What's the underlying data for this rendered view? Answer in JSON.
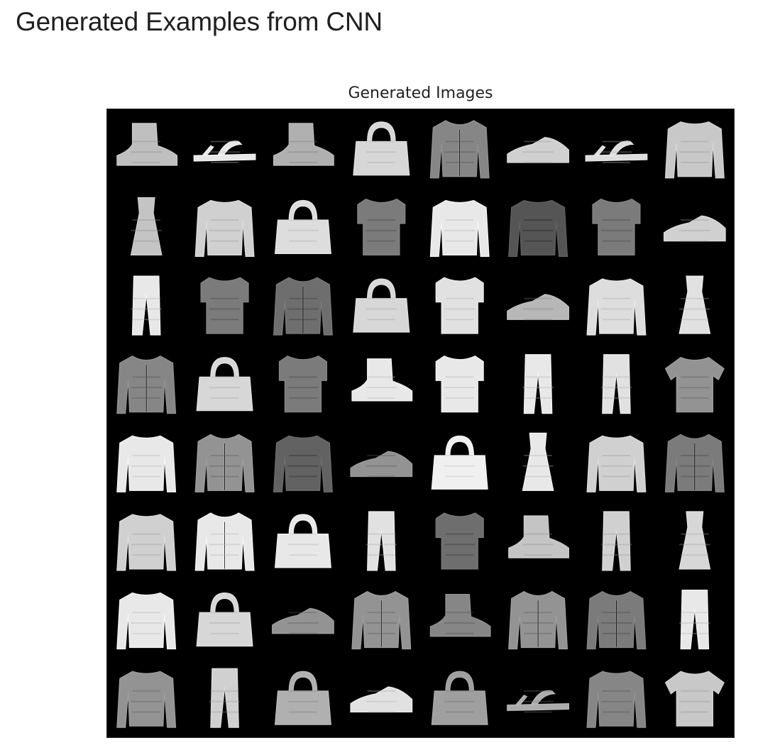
{
  "page": {
    "heading": "Generated Examples from CNN"
  },
  "figure": {
    "title": "Generated Images",
    "grid": {
      "rows": 8,
      "cols": 8,
      "background_color": "#000000",
      "cells": [
        [
          "ankle-boot",
          "sandal",
          "ankle-boot",
          "bag",
          "coat",
          "sneaker",
          "sandal",
          "pullover"
        ],
        [
          "dress",
          "pullover",
          "bag",
          "shirt",
          "pullover",
          "pullover",
          "shirt",
          "sneaker"
        ],
        [
          "trouser",
          "shirt",
          "coat",
          "bag",
          "shirt",
          "sneaker",
          "pullover",
          "dress"
        ],
        [
          "coat",
          "bag",
          "shirt",
          "ankle-boot",
          "shirt",
          "trouser",
          "trouser",
          "tshirt"
        ],
        [
          "pullover",
          "coat",
          "pullover",
          "sneaker",
          "bag",
          "dress",
          "pullover",
          "coat"
        ],
        [
          "pullover",
          "coat",
          "bag",
          "trouser",
          "shirt",
          "ankle-boot",
          "trouser",
          "dress"
        ],
        [
          "pullover",
          "bag",
          "sneaker",
          "coat",
          "ankle-boot",
          "coat",
          "coat",
          "trouser"
        ],
        [
          "pullover",
          "trouser",
          "bag",
          "sneaker",
          "bag",
          "sandal",
          "pullover",
          "tshirt"
        ]
      ],
      "tones": [
        [
          0.78,
          0.95,
          0.72,
          0.88,
          0.55,
          0.85,
          0.9,
          0.82
        ],
        [
          0.8,
          0.85,
          0.9,
          0.5,
          0.95,
          0.35,
          0.5,
          0.85
        ],
        [
          0.95,
          0.5,
          0.45,
          0.88,
          0.92,
          0.75,
          0.9,
          0.92
        ],
        [
          0.55,
          0.88,
          0.5,
          0.95,
          0.95,
          0.95,
          0.92,
          0.6
        ],
        [
          0.95,
          0.6,
          0.4,
          0.6,
          0.98,
          0.95,
          0.85,
          0.5
        ],
        [
          0.85,
          0.95,
          0.95,
          0.92,
          0.45,
          0.8,
          0.85,
          0.88
        ],
        [
          0.95,
          0.88,
          0.6,
          0.6,
          0.55,
          0.6,
          0.5,
          0.95
        ],
        [
          0.6,
          0.85,
          0.72,
          0.92,
          0.65,
          0.7,
          0.55,
          0.82
        ]
      ]
    }
  }
}
